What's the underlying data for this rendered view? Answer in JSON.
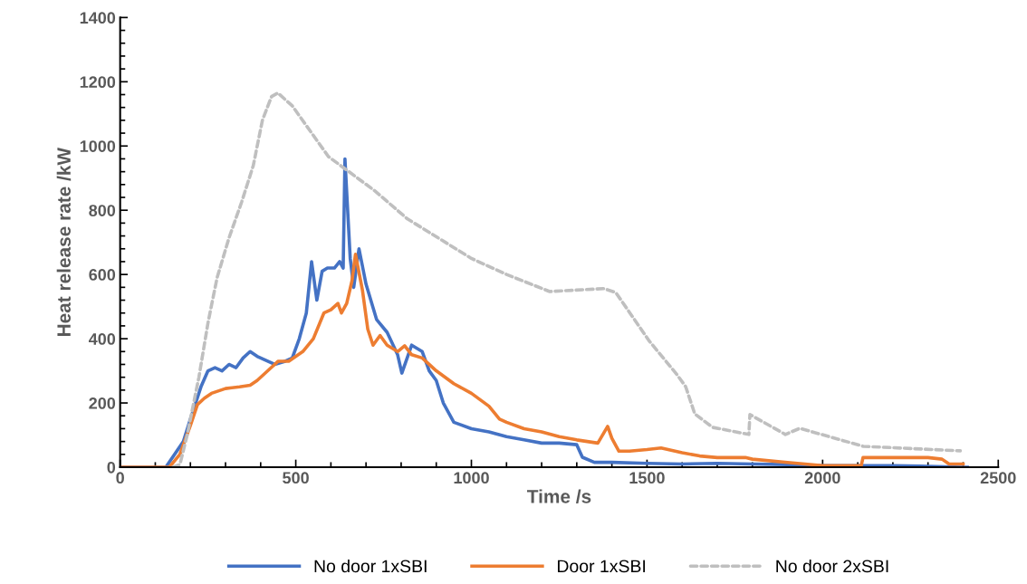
{
  "chart_data": {
    "type": "line",
    "xlabel": "Time /s",
    "ylabel": "Heat release rate /kW",
    "xlim": [
      0,
      2500
    ],
    "xticks": [
      0,
      500,
      1000,
      1500,
      2000,
      2500
    ],
    "ylim": [
      0,
      1400
    ],
    "yticks": [
      0,
      200,
      400,
      600,
      800,
      1000,
      1200,
      1400
    ],
    "grid": false,
    "legend": "bottom",
    "marker": "none",
    "series": [
      {
        "name": "No door 1xSBI",
        "color": "#4472c4",
        "line_style": "solid",
        "x": [
          0,
          100,
          130,
          180,
          200,
          230,
          250,
          270,
          290,
          310,
          330,
          350,
          370,
          390,
          420,
          440,
          470,
          490,
          510,
          530,
          545,
          560,
          575,
          590,
          610,
          625,
          635,
          640,
          655,
          665,
          680,
          700,
          730,
          760,
          790,
          802,
          830,
          860,
          880,
          900,
          920,
          950,
          1000,
          1050,
          1100,
          1150,
          1200,
          1250,
          1300,
          1316,
          1350,
          1400,
          1500,
          1600,
          1700,
          1800,
          1900,
          2000,
          2100,
          2200,
          2300,
          2400,
          2412
        ],
        "values": [
          0,
          0,
          0,
          80,
          150,
          250,
          300,
          310,
          300,
          320,
          310,
          340,
          360,
          345,
          330,
          320,
          330,
          340,
          400,
          480,
          640,
          520,
          610,
          620,
          620,
          640,
          620,
          960,
          650,
          560,
          680,
          570,
          460,
          420,
          350,
          293,
          380,
          360,
          300,
          270,
          200,
          140,
          120,
          110,
          95,
          85,
          75,
          75,
          70,
          31,
          15,
          15,
          12,
          10,
          12,
          10,
          8,
          5,
          5,
          5,
          3,
          0,
          0
        ]
      },
      {
        "name": "Door 1xSBI",
        "color": "#ed7d31",
        "line_style": "solid",
        "x": [
          0,
          140,
          170,
          200,
          220,
          240,
          260,
          300,
          340,
          370,
          390,
          430,
          450,
          480,
          520,
          550,
          580,
          600,
          620,
          630,
          645,
          660,
          670,
          690,
          705,
          720,
          740,
          760,
          790,
          810,
          830,
          860,
          900,
          950,
          1000,
          1050,
          1080,
          1100,
          1150,
          1200,
          1250,
          1300,
          1360,
          1388,
          1400,
          1420,
          1450,
          1500,
          1540,
          1600,
          1650,
          1700,
          1780,
          1800,
          1900,
          2000,
          2050,
          2110,
          2115,
          2200,
          2300,
          2340,
          2360,
          2400
        ],
        "values": [
          0,
          0,
          40,
          130,
          195,
          215,
          230,
          245,
          250,
          255,
          270,
          310,
          330,
          330,
          360,
          400,
          480,
          490,
          510,
          480,
          510,
          580,
          663,
          550,
          430,
          380,
          410,
          380,
          360,
          378,
          350,
          340,
          300,
          260,
          230,
          190,
          150,
          140,
          120,
          110,
          95,
          85,
          75,
          127,
          90,
          50,
          50,
          55,
          60,
          45,
          35,
          30,
          30,
          25,
          15,
          5,
          5,
          5,
          30,
          30,
          30,
          25,
          10,
          10
        ]
      },
      {
        "name": "No door 2xSBI",
        "color": "#bfbfbf",
        "line_style": "dashed",
        "x": [
          150,
          170,
          191,
          224,
          250,
          276,
          310,
          346,
          379,
          405,
          431,
          449,
          490,
          593,
          722,
          818,
          1000,
          1100,
          1223,
          1378,
          1411,
          1507,
          1584,
          1610,
          1636,
          1687,
          1790,
          1793,
          1894,
          1935,
          2116,
          2392
        ],
        "values": [
          0,
          8,
          101,
          279,
          449,
          590,
          714,
          826,
          939,
          1080,
          1154,
          1165,
          1125,
          967,
          863,
          773,
          650,
          600,
          547,
          556,
          544,
          392,
          290,
          251,
          166,
          124,
          102,
          164,
          102,
          121,
          65,
          51
        ]
      }
    ]
  }
}
